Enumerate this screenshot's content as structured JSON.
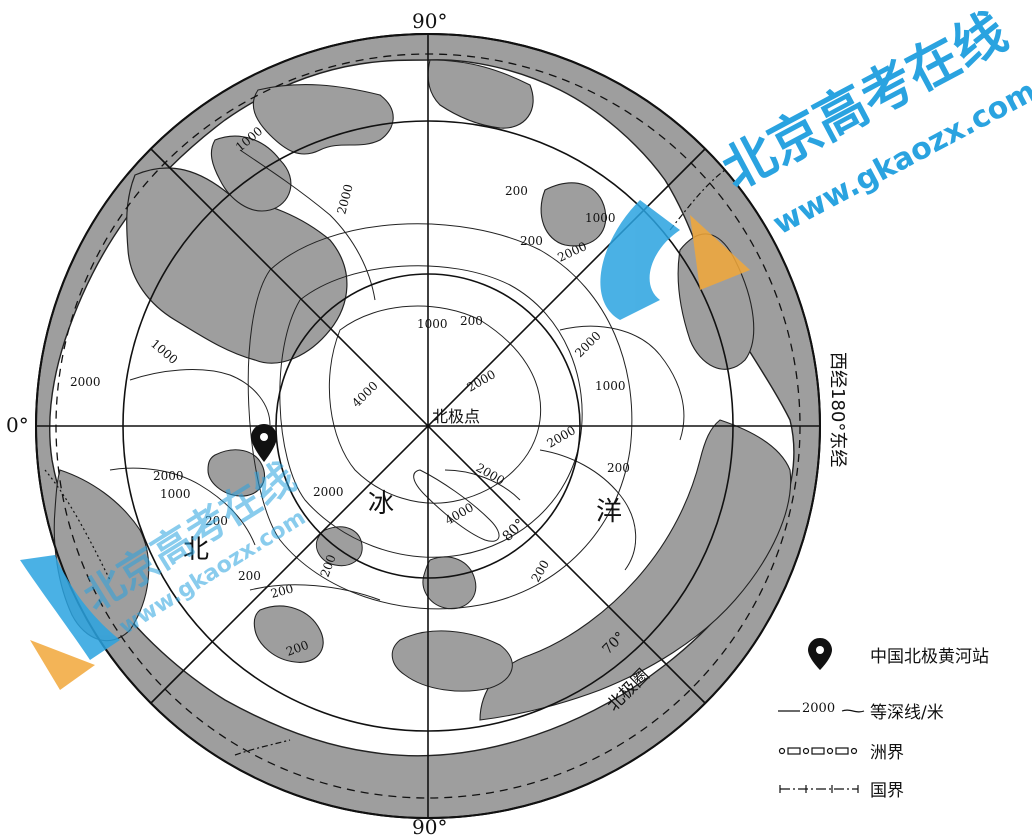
{
  "map": {
    "labels": {
      "top_meridian": "90°",
      "bottom_meridian": "90°",
      "left_meridian": "0°",
      "right_meridian": "西经180°东经",
      "north_pole": "北极点",
      "ocean_char_1": "北",
      "ocean_char_2": "冰",
      "ocean_char_3": "洋",
      "arctic_circle": "北极圈",
      "lat_70": "70°",
      "lat_80": "80°"
    },
    "contour_labels": [
      "1000",
      "2000",
      "200",
      "2000",
      "1000",
      "2000",
      "1000",
      "2000",
      "4000",
      "2000",
      "1000",
      "2000",
      "200",
      "2000",
      "4000",
      "2000",
      "200",
      "2000",
      "1000",
      "200",
      "200",
      "200",
      "200",
      "200",
      "1000",
      "200",
      "200"
    ],
    "colors": {
      "land": "#9e9e9e",
      "ocean": "#ffffff",
      "line": "#111111",
      "watermark_blue": "#2aa3e0",
      "watermark_orange": "#f2a83a"
    }
  },
  "watermark": {
    "brand": "北京高考在线",
    "url": "www.gkaozx.com"
  },
  "legend": [
    {
      "symbol": "station-marker",
      "text": "中国北极黄河站"
    },
    {
      "symbol": "depth-contour",
      "sample": "2000",
      "text": "等深线/米"
    },
    {
      "symbol": "continent-boundary",
      "text": "洲界"
    },
    {
      "symbol": "country-boundary",
      "text": "国界"
    }
  ]
}
